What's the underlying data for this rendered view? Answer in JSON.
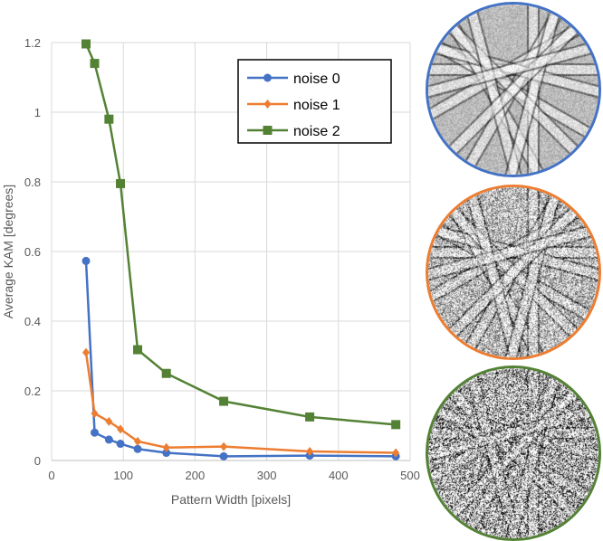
{
  "chart_data": {
    "type": "line",
    "xlabel": "Pattern Width [pixels]",
    "ylabel": "Average KAM [degrees]",
    "xlim": [
      0,
      500
    ],
    "ylim": [
      0,
      1.2
    ],
    "xticks": [
      "0",
      "100",
      "200",
      "300",
      "400",
      "500"
    ],
    "yticks": [
      "0",
      "0.2",
      "0.4",
      "0.6",
      "0.8",
      "1",
      "1.2"
    ],
    "grid": true,
    "legend": "top-right",
    "x": [
      48,
      60,
      80,
      96,
      120,
      160,
      240,
      360,
      480
    ],
    "series": [
      {
        "name": "noise 0",
        "color": "#4472c4",
        "marker": "circle",
        "values": [
          0.573,
          0.08,
          0.06,
          0.048,
          0.033,
          0.022,
          0.012,
          0.014,
          0.012
        ]
      },
      {
        "name": "noise 1",
        "color": "#ed7d31",
        "marker": "diamond",
        "values": [
          0.31,
          0.135,
          0.112,
          0.09,
          0.055,
          0.037,
          0.04,
          0.026,
          0.022
        ]
      },
      {
        "name": "noise 2",
        "color": "#548235",
        "marker": "square",
        "values": [
          1.196,
          1.14,
          0.98,
          0.795,
          0.318,
          0.25,
          0.17,
          0.125,
          0.103
        ]
      }
    ]
  },
  "patterns": [
    {
      "noise": "noise 0",
      "border": "#4472c4",
      "noise_level": 0
    },
    {
      "noise": "noise 1",
      "border": "#ed7d31",
      "noise_level": 1
    },
    {
      "noise": "noise 2",
      "border": "#548235",
      "noise_level": 2
    }
  ]
}
